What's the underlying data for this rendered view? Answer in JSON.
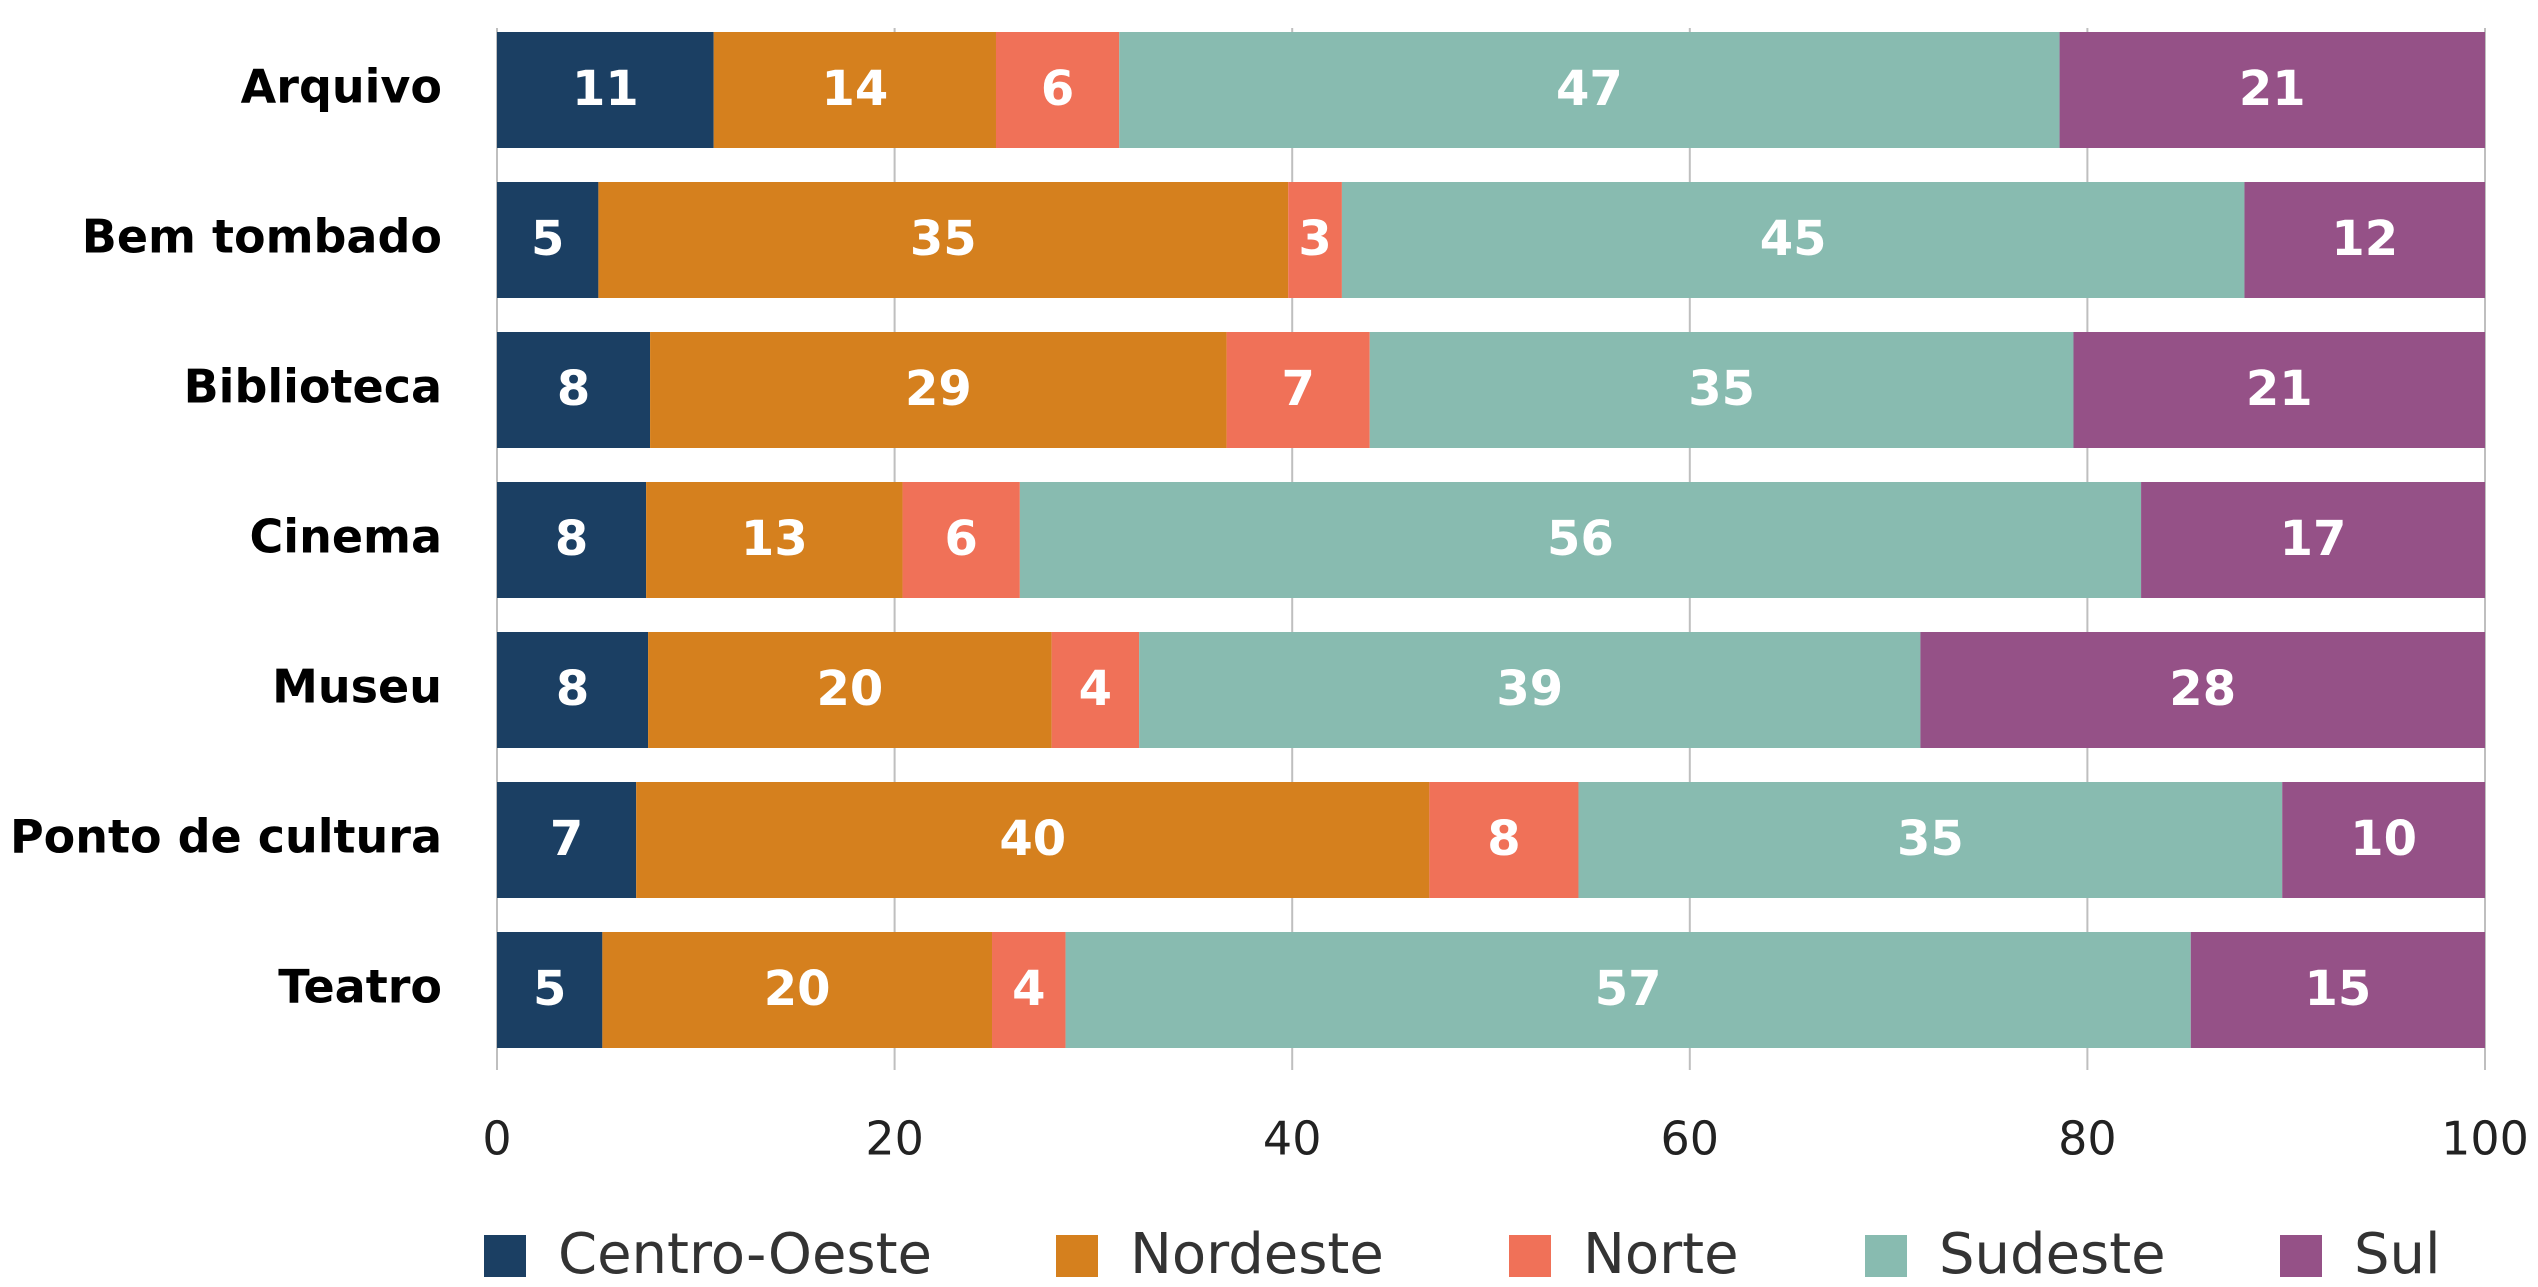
{
  "chart_data": {
    "type": "stacked_bar_horizontal",
    "categories": [
      "Arquivo",
      "Bem tombado",
      "Biblioteca",
      "Cinema",
      "Museu",
      "Ponto de cultura",
      "Teatro"
    ],
    "series": [
      {
        "name": "Centro-Oeste",
        "color": "#1b3f63",
        "values": [
          10.9,
          5.1,
          7.7,
          7.5,
          7.6,
          7.0,
          5.3
        ],
        "value_labels": [
          "11",
          "5",
          "8",
          "8",
          "8",
          "7",
          "5"
        ]
      },
      {
        "name": "Nordeste",
        "color": "#d5801e",
        "values": [
          14.2,
          34.7,
          29.0,
          12.9,
          20.3,
          39.9,
          19.6
        ],
        "value_labels": [
          "14",
          "35",
          "29",
          "13",
          "20",
          "40",
          "20"
        ]
      },
      {
        "name": "Norte",
        "color": "#f07158",
        "values": [
          6.2,
          2.7,
          7.2,
          5.9,
          4.4,
          7.5,
          3.7
        ],
        "value_labels": [
          "6",
          "3",
          "7",
          "6",
          "4",
          "8",
          "4"
        ]
      },
      {
        "name": "Sudeste",
        "color": "#88bbb0",
        "values": [
          47.3,
          45.4,
          35.4,
          56.4,
          39.3,
          35.4,
          56.6
        ],
        "value_labels": [
          "47",
          "45",
          "35",
          "56",
          "39",
          "35",
          "57"
        ]
      },
      {
        "name": "Sul",
        "color": "#955187",
        "values": [
          21.4,
          12.1,
          20.7,
          17.3,
          28.4,
          10.2,
          14.8
        ],
        "value_labels": [
          "21",
          "12",
          "21",
          "17",
          "28",
          "10",
          "15"
        ]
      }
    ],
    "xlim": [
      0,
      100
    ],
    "xticks": [
      0,
      20,
      40,
      60,
      80,
      100
    ],
    "grid": true,
    "legend": "bottom"
  }
}
